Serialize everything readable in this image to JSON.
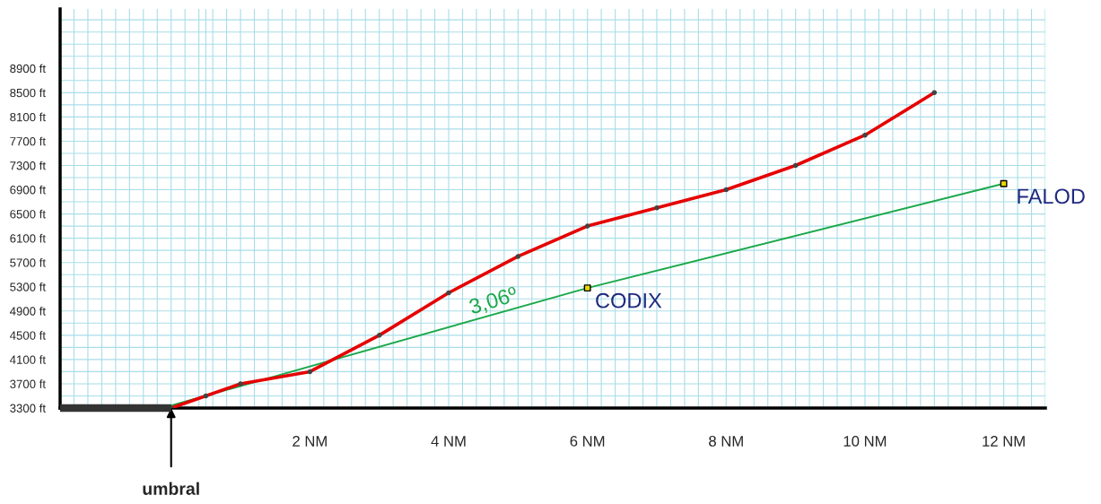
{
  "chart_data": {
    "type": "line",
    "xlim": [
      -1.6,
      12.6
    ],
    "ylim": [
      3300,
      9880
    ],
    "xticks": [
      {
        "value": 0,
        "label": null
      },
      {
        "value": 0.5,
        "label": null
      },
      {
        "value": 1,
        "label": null
      },
      {
        "value": 2,
        "label": "2 NM"
      },
      {
        "value": 3,
        "label": null
      },
      {
        "value": 4,
        "label": "4 NM"
      },
      {
        "value": 5,
        "label": null
      },
      {
        "value": 6,
        "label": "6 NM"
      },
      {
        "value": 7,
        "label": null
      },
      {
        "value": 8,
        "label": "8 NM"
      },
      {
        "value": 9,
        "label": null
      },
      {
        "value": 10,
        "label": "10 NM"
      },
      {
        "value": 11,
        "label": null
      },
      {
        "value": 12,
        "label": "12 NM"
      }
    ],
    "yticks": [
      {
        "value": 3300,
        "label": "3300 ft"
      },
      {
        "value": 3700,
        "label": "3700 ft"
      },
      {
        "value": 4100,
        "label": "4100 ft"
      },
      {
        "value": 4500,
        "label": "4500 ft"
      },
      {
        "value": 4900,
        "label": "4900 ft"
      },
      {
        "value": 5300,
        "label": "5300 ft"
      },
      {
        "value": 5700,
        "label": "5700 ft"
      },
      {
        "value": 6100,
        "label": "6100 ft"
      },
      {
        "value": 6500,
        "label": "6500 ft"
      },
      {
        "value": 6900,
        "label": "6900 ft"
      },
      {
        "value": 7300,
        "label": "7300 ft"
      },
      {
        "value": 7700,
        "label": "7700 ft"
      },
      {
        "value": 8100,
        "label": "8100 ft"
      },
      {
        "value": 8500,
        "label": "8500 ft"
      },
      {
        "value": 8900,
        "label": "8900 ft"
      }
    ],
    "grid": true,
    "series": [
      {
        "color": "#1aa84a",
        "marker": "none",
        "x": [
          0,
          6,
          12
        ],
        "values": [
          3340,
          5280,
          7000
        ]
      },
      {
        "color": "#e60000",
        "marker": "circle",
        "x": [
          0,
          0.5,
          1,
          2,
          3,
          4,
          5,
          6,
          7,
          8,
          9,
          10,
          11
        ],
        "values": [
          3300,
          3500,
          3700,
          3900,
          4500,
          5200,
          5800,
          6300,
          6600,
          6900,
          7300,
          7800,
          8500
        ]
      },
      {
        "type": "scatter",
        "color": "#e8d800",
        "marker": "square",
        "x": [
          6,
          12
        ],
        "values": [
          5280,
          7000
        ]
      }
    ],
    "annotations": [
      {
        "text": "CODIX",
        "x": 6,
        "y": 5280
      },
      {
        "text": "FALOD",
        "x": 12,
        "y": 7000
      },
      "3,06º",
      {
        "text": "umbral",
        "x": 0,
        "y": 3300
      }
    ]
  }
}
